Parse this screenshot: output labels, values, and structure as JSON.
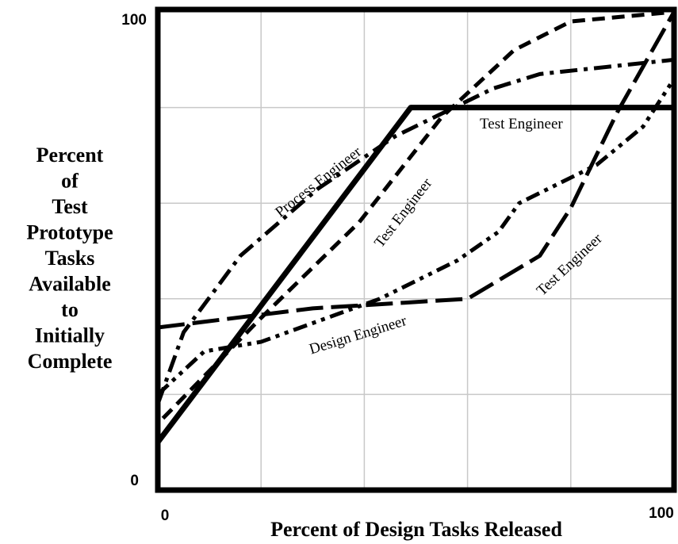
{
  "chart_data": {
    "type": "line",
    "xlabel": "Percent of Design Tasks Released",
    "ylabel": [
      "Percent",
      "of",
      "Test",
      "Prototype",
      "Tasks",
      "Available",
      "to",
      "Initially",
      "Complete"
    ],
    "xlim": [
      0,
      100
    ],
    "ylim": [
      0,
      100
    ],
    "xticks": [
      0,
      100
    ],
    "yticks": [
      0,
      100
    ],
    "xgrid": [
      20,
      40,
      60,
      80
    ],
    "ygrid": [
      20,
      40,
      60,
      80
    ],
    "grid": true,
    "series": [
      {
        "color": "#000000",
        "style": "solid",
        "x": [
          0,
          49,
          100
        ],
        "values": [
          10,
          80,
          80
        ]
      },
      {
        "color": "#000000",
        "style": "long-dash",
        "x": [
          0,
          30,
          60,
          74,
          80,
          89,
          100
        ],
        "values": [
          34,
          38,
          40,
          49,
          59,
          79,
          100
        ]
      },
      {
        "color": "#000000",
        "style": "dash-dot",
        "x": [
          0,
          5,
          16,
          31,
          46,
          65,
          74,
          100
        ],
        "values": [
          18,
          33,
          49,
          63,
          74,
          84,
          87,
          90
        ]
      },
      {
        "color": "#000000",
        "style": "short-dash",
        "x": [
          1,
          20,
          39,
          55,
          69,
          80,
          100
        ],
        "values": [
          15,
          36,
          56,
          78,
          92,
          98,
          100
        ]
      },
      {
        "color": "#000000",
        "style": "dash-dot-dot",
        "x": [
          0,
          9,
          20,
          43,
          58,
          66,
          70,
          85,
          94,
          100
        ],
        "values": [
          20,
          29,
          31,
          40,
          48,
          54,
          60,
          68,
          76,
          86
        ]
      }
    ],
    "annotations": [
      "Test Engineer",
      "Process Engineer",
      "Test Engineer",
      "Design Engineer",
      "Test Engineer"
    ]
  }
}
